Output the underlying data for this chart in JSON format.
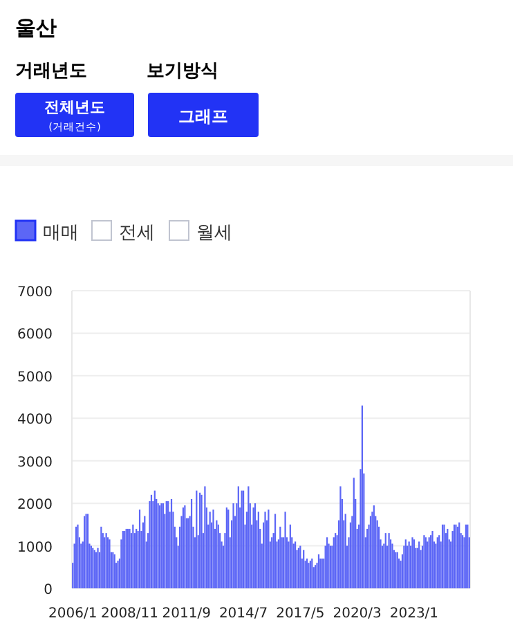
{
  "chart_data": {
    "type": "bar",
    "title": "울산",
    "annotations": [
      "거래년도",
      "보기방식",
      "전체년도",
      "(거래건수)",
      "그래프",
      "전세",
      "월세"
    ],
    "categories": [
      "2006/1",
      null,
      null,
      null,
      null,
      null,
      null,
      null,
      null,
      null,
      null,
      null,
      null,
      null,
      null,
      null,
      null,
      null,
      null,
      null,
      null,
      null,
      null,
      null,
      null,
      null,
      null,
      null,
      null,
      null,
      null,
      null,
      null,
      null,
      "2008/11",
      null,
      null,
      null,
      null,
      null,
      null,
      null,
      null,
      null,
      null,
      null,
      null,
      null,
      null,
      null,
      null,
      null,
      null,
      null,
      null,
      null,
      null,
      null,
      null,
      null,
      null,
      null,
      null,
      null,
      null,
      null,
      null,
      null,
      "2011/9",
      null,
      null,
      null,
      null,
      null,
      null,
      null,
      null,
      null,
      null,
      null,
      null,
      null,
      null,
      null,
      null,
      null,
      null,
      null,
      null,
      null,
      null,
      null,
      null,
      null,
      null,
      null,
      null,
      null,
      null,
      null,
      null,
      null,
      "2014/7",
      null,
      null,
      null,
      null,
      null,
      null,
      null,
      null,
      null,
      null,
      null,
      null,
      null,
      null,
      null,
      null,
      null,
      null,
      null,
      null,
      null,
      null,
      null,
      null,
      null,
      null,
      null,
      null,
      null,
      null,
      null,
      null,
      null,
      "2017/5",
      null,
      null,
      null,
      null,
      null,
      null,
      null,
      null,
      null,
      null,
      null,
      null,
      null,
      null,
      null,
      null,
      null,
      null,
      null,
      null,
      null,
      null,
      null,
      null,
      null,
      null,
      null,
      null,
      null,
      null,
      null,
      null,
      null,
      "2020/3",
      null,
      null,
      null,
      null,
      null,
      null,
      null,
      null,
      null,
      null,
      null,
      null,
      null,
      null,
      null,
      null,
      null,
      null,
      null,
      null,
      null,
      null,
      null,
      null,
      null,
      null,
      null,
      null,
      null,
      null,
      null,
      null,
      null,
      "2023/1",
      null,
      null,
      null,
      null,
      null,
      null,
      null,
      null,
      null,
      null,
      null,
      null,
      null,
      null,
      null,
      null,
      null,
      null,
      null,
      null,
      null,
      null,
      null,
      null,
      null,
      null,
      null,
      null,
      null,
      null,
      null,
      null,
      null
    ],
    "series": [
      {
        "name": "매매",
        "color": "#5c66f6",
        "values": [
          600,
          1050,
          1450,
          1500,
          1200,
          1050,
          1100,
          1700,
          1750,
          1750,
          1050,
          1000,
          950,
          900,
          850,
          950,
          850,
          1450,
          1300,
          1200,
          1300,
          1200,
          1150,
          850,
          850,
          800,
          600,
          650,
          700,
          1150,
          1350,
          1350,
          1400,
          1400,
          1400,
          1300,
          1500,
          1300,
          1400,
          1350,
          1850,
          1350,
          1550,
          1700,
          1100,
          1300,
          2050,
          2200,
          2050,
          2300,
          2100,
          2000,
          1950,
          2000,
          2000,
          1750,
          2050,
          2050,
          1800,
          2100,
          1800,
          1450,
          1200,
          1000,
          1450,
          1700,
          1900,
          1950,
          1650,
          1650,
          1700,
          2100,
          1450,
          1200,
          2300,
          1250,
          2250,
          2200,
          1300,
          2400,
          1900,
          1500,
          1800,
          1550,
          1850,
          1400,
          1600,
          1500,
          1300,
          1100,
          1000,
          1300,
          1900,
          1850,
          1200,
          1600,
          2000,
          1700,
          2000,
          2400,
          1900,
          2300,
          2300,
          1500,
          1800,
          2400,
          2000,
          1500,
          1900,
          2000,
          1600,
          1800,
          1400,
          1050,
          1550,
          1800,
          1600,
          1850,
          1100,
          1200,
          1300,
          1750,
          1100,
          1150,
          1450,
          1200,
          1200,
          1800,
          1200,
          1100,
          1500,
          1200,
          1050,
          1100,
          900,
          950,
          1000,
          700,
          900,
          650,
          700,
          600,
          650,
          700,
          500,
          550,
          600,
          800,
          700,
          700,
          700,
          1000,
          1200,
          1050,
          1000,
          1000,
          1200,
          1300,
          1250,
          1600,
          2400,
          2100,
          1600,
          1750,
          1000,
          1200,
          1550,
          1700,
          2600,
          2100,
          1400,
          1500,
          2800,
          4300,
          2700,
          1200,
          1400,
          1500,
          1700,
          1800,
          1950,
          1700,
          1600,
          1450,
          1150,
          1000,
          1050,
          1300,
          1000,
          1300,
          1150,
          1050,
          900,
          850,
          850,
          700,
          650,
          800,
          1000,
          1150,
          1000,
          1100,
          1000,
          1200,
          1150,
          950,
          950,
          1100,
          900,
          1000,
          1250,
          1200,
          1100,
          1200,
          1250,
          1350,
          1100,
          1050,
          1200,
          1250,
          1100,
          1500,
          1500,
          1300,
          1400,
          1150,
          1100,
          1350,
          1500,
          1500,
          1450,
          1550,
          1300,
          1250,
          1200,
          1500,
          1500,
          1200
        ]
      }
    ],
    "ylim": [
      0,
      7000
    ],
    "yticks": [
      0,
      1000,
      2000,
      3000,
      4000,
      5000,
      6000,
      7000
    ],
    "grid": "y",
    "legend": "top left"
  }
}
